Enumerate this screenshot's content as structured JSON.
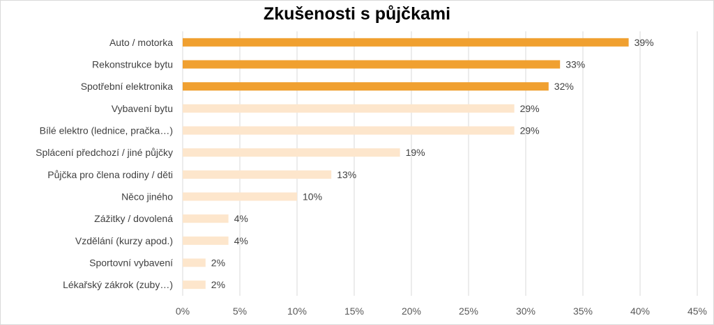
{
  "chart_data": {
    "type": "bar",
    "orientation": "horizontal",
    "title": "Zkušenosti s půjčkami",
    "xlabel": "",
    "ylabel": "",
    "categories": [
      "Auto / motorka",
      "Rekonstrukce bytu",
      "Spotřební elektronika",
      "Vybavení bytu",
      "Bílé elektro (lednice, pračka…)",
      "Splácení předchozí / jiné půjčky",
      "Půjčka pro člena rodiny / děti",
      "Něco jiného",
      "Zážitky / dovolená",
      "Vzdělání (kurzy apod.)",
      "Sportovní vybavení",
      "Lékařský zákrok (zuby…)"
    ],
    "values": [
      39,
      33,
      32,
      29,
      29,
      19,
      13,
      10,
      4,
      4,
      2,
      2
    ],
    "value_labels": [
      "39%",
      "33%",
      "32%",
      "29%",
      "29%",
      "19%",
      "13%",
      "10%",
      "4%",
      "4%",
      "2%",
      "2%"
    ],
    "highlighted": [
      true,
      true,
      true,
      false,
      false,
      false,
      false,
      false,
      false,
      false,
      false,
      false
    ],
    "xlim": [
      0,
      45
    ],
    "ticks": [
      0,
      5,
      10,
      15,
      20,
      25,
      30,
      35,
      40,
      45
    ],
    "tick_labels": [
      "0%",
      "5%",
      "10%",
      "15%",
      "20%",
      "25%",
      "30%",
      "35%",
      "40%",
      "45%"
    ],
    "grid": true,
    "legend": "none",
    "colors": {
      "highlight": "#f0a030",
      "muted": "#fde6cc",
      "gridline": "#d9d9d9",
      "text": "#404040"
    }
  }
}
